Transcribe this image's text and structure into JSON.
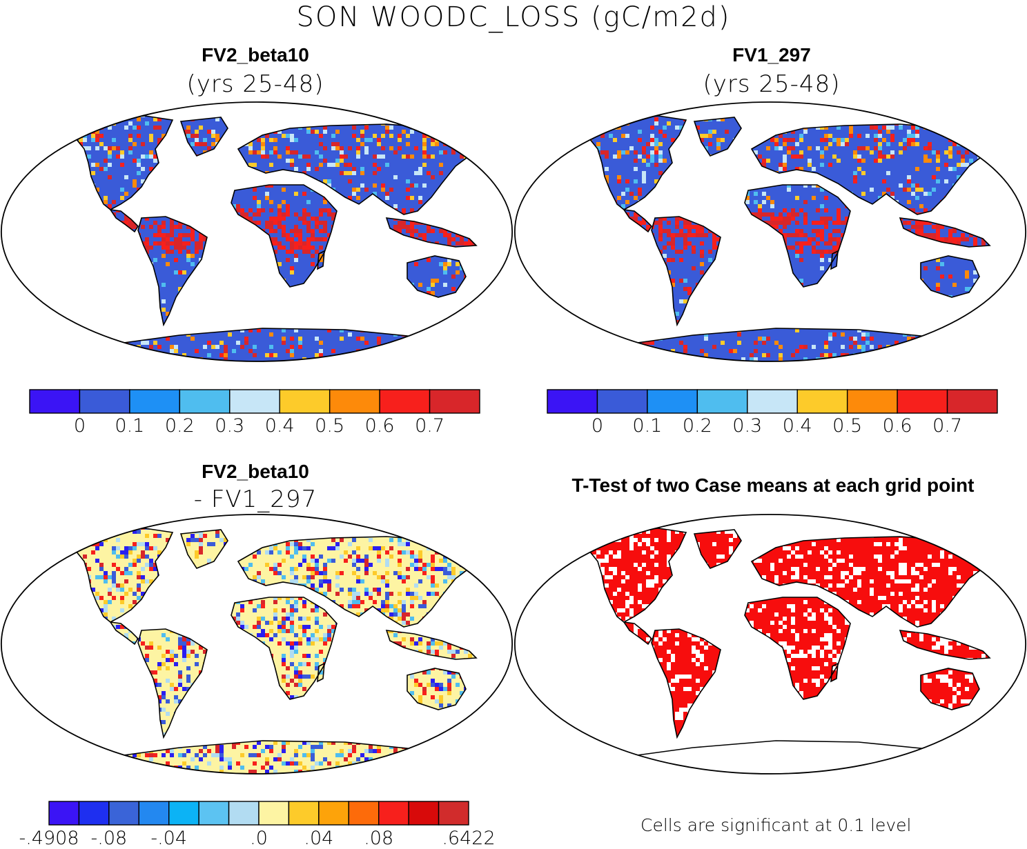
{
  "title": "SON WOODC_LOSS (gC/m2d)",
  "panels": [
    {
      "id": "p1",
      "case": "FV2_beta10",
      "subtitle": "(yrs 25-48)",
      "land_fill": "#3a5bd8",
      "hotspot_colors": [
        "#d8262a",
        "#f7201c",
        "#fd8a0a",
        "#fdcb2a",
        "#c7e6f7",
        "#4fbdef"
      ]
    },
    {
      "id": "p2",
      "case": "FV1_297",
      "subtitle": "(yrs 25-48)",
      "land_fill": "#3a5bd8",
      "hotspot_colors": [
        "#d8262a",
        "#f7201c",
        "#fd8a0a",
        "#fdcb2a",
        "#c7e6f7",
        "#4fbdef"
      ]
    },
    {
      "id": "p3",
      "case": "FV2_beta10",
      "subtitle": "- FV1_297",
      "land_fill": "#fdf4a3",
      "hotspot_colors": [
        "#b0dcf2",
        "#4fbdef",
        "#3a5bd8",
        "#2a1ff0",
        "#fdcb2a",
        "#f7201c",
        "#d8262a"
      ]
    },
    {
      "id": "p4",
      "case": "",
      "subtitle": "T-Test of two Case means at each grid point",
      "land_fill": "#f70d0d",
      "hotspot_colors": [
        "#ffffff"
      ]
    }
  ],
  "colorbar_abs": {
    "colors": [
      "#3b14f5",
      "#3a5bd8",
      "#1e90f5",
      "#4fbdef",
      "#c7e6f7",
      "#fdcb2a",
      "#fd8a0a",
      "#f7201c",
      "#d8262a"
    ],
    "labels": [
      "0",
      "0.1",
      "0.2",
      "0.3",
      "0.4",
      "0.5",
      "0.6",
      "0.7"
    ]
  },
  "colorbar_diff": {
    "colors": [
      "#3b14f5",
      "#1e2ff0",
      "#3a64d8",
      "#2388f0",
      "#0cb3f5",
      "#5cc3f2",
      "#b2dcf2",
      "#fdf4a3",
      "#fdcb2a",
      "#fda30a",
      "#fd6b0a",
      "#f7201c",
      "#d80a0a",
      "#d12c2c"
    ],
    "labels": [
      ".4908",
      "-.08",
      "-.04",
      ".0",
      ".04",
      ".08",
      ".6422"
    ],
    "first_label_prefix": "-"
  },
  "significance_note": "Cells are significant at 0.1 level"
}
